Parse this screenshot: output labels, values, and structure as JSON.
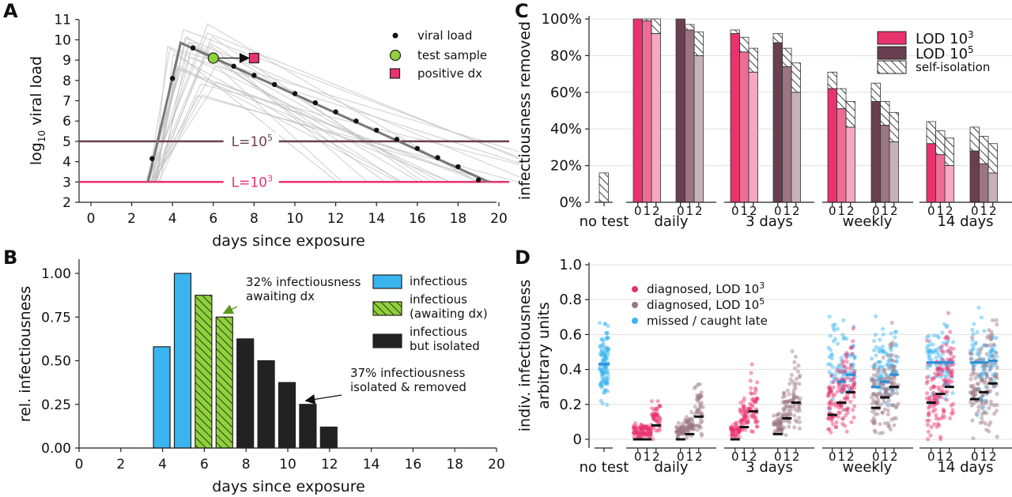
{
  "colors": {
    "lod3": "#e8336d",
    "lod5": "#6a3f4f",
    "infectious": "#3ab4ef",
    "awaiting": "#8fd13b",
    "isolated": "#222222",
    "missed": "#3ab4ef",
    "gray_traj": "#bdbdbd",
    "main_traj": "#777777"
  },
  "panels": {
    "A": {
      "label": "A",
      "xlabel": "days since exposure",
      "ylabel_base": "log",
      "ylabel_sub": "10",
      "ylabel_rest": " viral load",
      "xticks": [
        0,
        2,
        4,
        6,
        8,
        10,
        12,
        14,
        16,
        18,
        20
      ],
      "yticks": [
        2,
        3,
        4,
        5,
        6,
        7,
        8,
        9,
        10,
        11
      ],
      "legend": {
        "viral_load": "viral load",
        "test_sample": "test sample",
        "positive_dx": "positive dx"
      },
      "thresholds": [
        {
          "label_main": "L=10",
          "label_sup": "5",
          "value": 5,
          "color": "#6a3f4f"
        },
        {
          "label_main": "L=10",
          "label_sup": "3",
          "value": 3,
          "color": "#e8336d"
        }
      ]
    },
    "B": {
      "label": "B",
      "xlabel": "days since exposure",
      "ylabel": "rel. infectiousness",
      "xticks": [
        0,
        2,
        4,
        6,
        8,
        10,
        12,
        14,
        16,
        18,
        20
      ],
      "yticks": [
        "0.00",
        "0.25",
        "0.50",
        "0.75",
        "1.00"
      ],
      "legend": {
        "infectious": "infectious",
        "awaiting_1": "infectious",
        "awaiting_2": "(awaiting dx)",
        "isolated_1": "infectious",
        "isolated_2": "but isolated"
      },
      "annotations": {
        "a1_line1": "32% infectiousness",
        "a1_line2": "awaiting dx",
        "a2_line1": "37% infectiousness",
        "a2_line2": "isolated & removed"
      }
    },
    "C": {
      "label": "C",
      "ylabel": "infectiousness removed",
      "yticks": [
        "0%",
        "20%",
        "40%",
        "60%",
        "80%",
        "100%"
      ],
      "groups": [
        "no test",
        "daily",
        "3 days",
        "weekly",
        "14 days"
      ],
      "sublabels": [
        "0",
        "1",
        "2"
      ],
      "legend": {
        "lod3_main": "LOD 10",
        "lod3_sup": "3",
        "lod5_main": "LOD 10",
        "lod5_sup": "5",
        "self": "self-isolation"
      }
    },
    "D": {
      "label": "D",
      "ylabel_1": "indiv. infectiousness",
      "ylabel_2": "arbitrary units",
      "yticks": [
        "0",
        "0.2",
        "0.4",
        "0.6",
        "0.8",
        "1.0"
      ],
      "groups": [
        "no test",
        "daily",
        "3 days",
        "weekly",
        "14 days"
      ],
      "sublabels": [
        "0",
        "1",
        "2"
      ],
      "legend": {
        "lod3_main": "diagnosed, LOD 10",
        "lod3_sup": "3",
        "lod5_main": "diagnosed, LOD 10",
        "lod5_sup": "5",
        "missed": "missed / caught late"
      }
    }
  },
  "chart_data": [
    {
      "panel": "A",
      "type": "line",
      "xlabel": "days since exposure",
      "ylabel": "log10 viral load",
      "xlim": [
        -0.5,
        21
      ],
      "ylim": [
        2,
        11
      ],
      "grid": false,
      "legend_position": "top-right",
      "series": [
        {
          "name": "viral load",
          "x": [
            3,
            4,
            5,
            7,
            8,
            9,
            10,
            11,
            12,
            13,
            14,
            15,
            16,
            17,
            18,
            19
          ],
          "values": [
            4.15,
            8.1,
            9.6,
            8.7,
            8.25,
            7.8,
            7.35,
            6.9,
            6.45,
            6.0,
            5.55,
            5.1,
            4.65,
            4.2,
            3.75,
            3.1
          ]
        },
        {
          "name": "test sample",
          "x": [
            6
          ],
          "values": [
            9.1
          ]
        },
        {
          "name": "positive dx",
          "x": [
            8
          ],
          "values": [
            9.1
          ]
        }
      ],
      "main_trajectory": {
        "x": [
          2.8,
          4.4,
          19.5
        ],
        "values": [
          3.0,
          9.85,
          3.0
        ]
      },
      "thresholds": [
        5,
        3
      ]
    },
    {
      "panel": "B",
      "type": "bar",
      "xlabel": "days since exposure",
      "ylabel": "rel. infectiousness",
      "xlim": [
        0,
        20
      ],
      "ylim": [
        0,
        1.1
      ],
      "x": [
        4,
        5,
        6,
        7,
        8,
        9,
        10,
        11,
        12
      ],
      "values": [
        0.58,
        1.0,
        0.875,
        0.75,
        0.625,
        0.5,
        0.375,
        0.25,
        0.12
      ],
      "category": [
        "infectious",
        "infectious",
        "awaiting",
        "awaiting",
        "isolated",
        "isolated",
        "isolated",
        "isolated",
        "isolated"
      ],
      "legend_position": "right"
    },
    {
      "panel": "C",
      "type": "bar",
      "ylabel": "infectiousness removed",
      "ylim": [
        0,
        100
      ],
      "grid": true,
      "legend_position": "top-right",
      "categories": [
        "no test",
        "daily",
        "3 days",
        "weekly",
        "14 days"
      ],
      "no_test_self_isolation": 16,
      "series": [
        {
          "name": "LOD 10^3",
          "dx": [
            [
              100,
              99,
              92
            ],
            [
              92,
              82,
              71
            ],
            [
              62,
              51,
              41
            ],
            [
              32,
              26,
              20
            ]
          ],
          "total": [
            [
              100,
              100,
              100
            ],
            [
              94,
              90,
              84
            ],
            [
              71,
              62,
              55
            ],
            [
              44,
              39,
              35
            ]
          ]
        },
        {
          "name": "LOD 10^5",
          "dx": [
            [
              100,
              94,
              80
            ],
            [
              87,
              74,
              60
            ],
            [
              55,
              42,
              33
            ],
            [
              28,
              21,
              16
            ]
          ],
          "total": [
            [
              100,
              97,
              93
            ],
            [
              92,
              84,
              76
            ],
            [
              65,
              55,
              49
            ],
            [
              41,
              36,
              32
            ]
          ]
        }
      ]
    },
    {
      "panel": "D",
      "type": "scatter",
      "ylabel": "indiv. infectiousness arbitrary units",
      "ylim": [
        -0.05,
        1.0
      ],
      "grid": true,
      "legend_position": "top-left",
      "categories": [
        "no test",
        "daily",
        "3 days",
        "weekly",
        "14 days"
      ],
      "no_test_mean": 0.43,
      "series": [
        {
          "name": "diagnosed, LOD 10^3",
          "means": [
            [
              0.0,
              0.0,
              0.08
            ],
            [
              0.0,
              0.07,
              0.16
            ],
            [
              0.14,
              0.21,
              0.27
            ],
            [
              0.21,
              0.26,
              0.3
            ]
          ]
        },
        {
          "name": "diagnosed, LOD 10^5",
          "means": [
            [
              0.0,
              0.03,
              0.13
            ],
            [
              0.03,
              0.12,
              0.21
            ],
            [
              0.18,
              0.24,
              0.3
            ],
            [
              0.23,
              0.27,
              0.32
            ]
          ]
        },
        {
          "name": "missed / caught late",
          "means_lod3": [
            [
              null,
              null,
              null
            ],
            [
              null,
              null,
              null
            ],
            [
              null,
              0.33,
              0.37
            ],
            [
              0.44,
              0.44,
              0.44
            ]
          ],
          "means_lod5": [
            [
              null,
              null,
              null
            ],
            [
              null,
              null,
              null
            ],
            [
              0.3,
              0.33,
              0.37
            ],
            [
              0.44,
              0.44,
              0.45
            ]
          ]
        }
      ]
    }
  ]
}
